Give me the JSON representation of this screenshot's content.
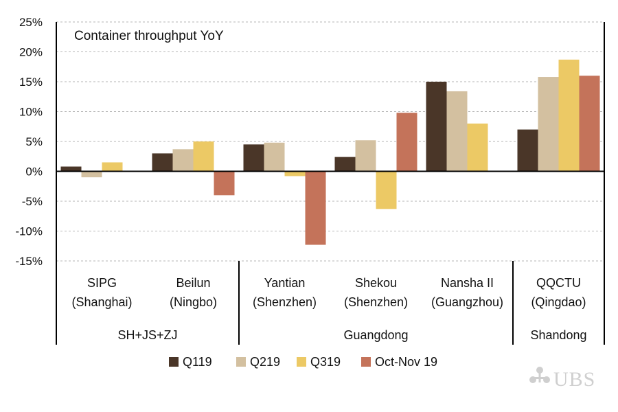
{
  "chart_data": {
    "type": "bar",
    "title": "Container throughput YoY",
    "ylim": [
      -15,
      25
    ],
    "yticks": [
      -15,
      -10,
      -5,
      0,
      5,
      10,
      15,
      20,
      25
    ],
    "ytick_labels": [
      "-15%",
      "-10%",
      "-5%",
      "0%",
      "5%",
      "10%",
      "15%",
      "20%",
      "25%"
    ],
    "grid": "horizontal dashed",
    "legend_position": "bottom",
    "categories": [
      [
        "SIPG",
        "(Shanghai)"
      ],
      [
        "Beilun",
        "(Ningbo)"
      ],
      [
        "Yantian",
        "(Shenzhen)"
      ],
      [
        "Shekou",
        "(Shenzhen)"
      ],
      [
        "Nansha II",
        "(Guangzhou)"
      ],
      [
        "QQCTU",
        "(Qingdao)"
      ]
    ],
    "groups": [
      {
        "label": "SH+JS+ZJ",
        "start": 0,
        "end": 1
      },
      {
        "label": "Guangdong",
        "start": 2,
        "end": 4
      },
      {
        "label": "Shandong",
        "start": 5,
        "end": 5
      }
    ],
    "series": [
      {
        "name": "Q119",
        "color": "#4a3628",
        "values": [
          0.8,
          3.0,
          4.5,
          2.4,
          15.0,
          7.0
        ]
      },
      {
        "name": "Q219",
        "color": "#d3c0a0",
        "values": [
          -1.0,
          3.7,
          4.8,
          5.2,
          13.4,
          15.8
        ]
      },
      {
        "name": "Q319",
        "color": "#ecc965",
        "values": [
          1.5,
          5.0,
          -0.8,
          -6.3,
          8.0,
          18.7
        ]
      },
      {
        "name": "Oct-Nov 19",
        "color": "#c4735a",
        "values": [
          0.0,
          -4.0,
          -12.3,
          9.8,
          0.0,
          16.0
        ]
      }
    ]
  },
  "logo": {
    "text": "UBS",
    "icon": "ubs-keys-icon"
  }
}
